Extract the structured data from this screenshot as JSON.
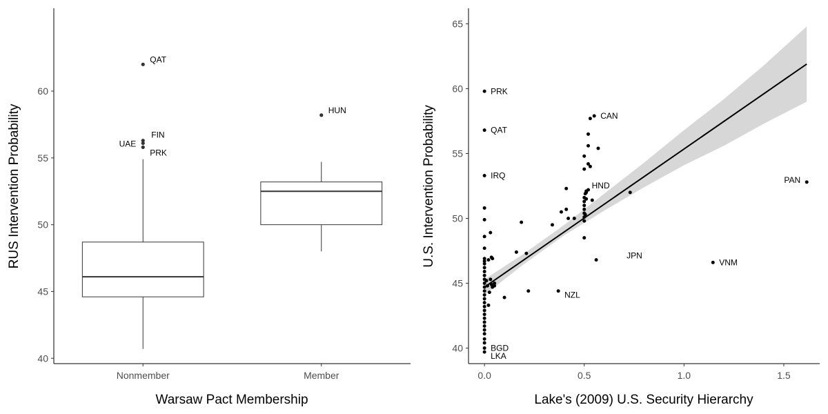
{
  "chart_data": [
    {
      "type": "box",
      "xlabel": "Warsaw Pact Membership",
      "ylabel": "RUS Intervention Probability",
      "ylim": [
        39.6,
        66.2
      ],
      "yticks": [
        40,
        45,
        50,
        55,
        60
      ],
      "categories": [
        "Nonmember",
        "Member"
      ],
      "boxes": [
        {
          "category": "Nonmember",
          "lower_whisker": 40.7,
          "q1": 44.6,
          "median": 46.1,
          "q3": 48.7,
          "upper_whisker": 54.9
        },
        {
          "category": "Member",
          "lower_whisker": 48.0,
          "q1": 50.0,
          "median": 52.5,
          "q3": 53.2,
          "upper_whisker": 54.7
        }
      ],
      "outliers": [
        {
          "category": "Nonmember",
          "y": 62.0,
          "label": "QAT",
          "label_side": "right"
        },
        {
          "category": "Nonmember",
          "y": 56.3,
          "label": "FIN",
          "label_side": "right-up"
        },
        {
          "category": "Nonmember",
          "y": 56.1,
          "label": "UAE",
          "label_side": "left"
        },
        {
          "category": "Nonmember",
          "y": 55.8,
          "label": "PRK",
          "label_side": "right-down"
        },
        {
          "category": "Member",
          "y": 58.2,
          "label": "HUN",
          "label_side": "right"
        }
      ]
    },
    {
      "type": "scatter",
      "xlabel": "Lake's (2009) U.S. Security Hierarchy",
      "ylabel": "U.S. Intervention Probability",
      "xlim": [
        -0.08,
        1.68
      ],
      "ylim": [
        38.8,
        66.2
      ],
      "xticks": [
        0.0,
        0.5,
        1.0,
        1.5
      ],
      "xtick_labels": [
        "0.0",
        "0.5",
        "1.0",
        "1.5"
      ],
      "yticks": [
        40,
        45,
        50,
        55,
        60,
        65
      ],
      "fit": {
        "x0": 0.0,
        "y0": 44.7,
        "x1": 1.615,
        "y1": 61.9
      },
      "band": {
        "x": [
          0.0,
          0.2,
          0.4,
          0.6,
          0.8,
          1.0,
          1.2,
          1.4,
          1.615
        ],
        "upper": [
          45.3,
          47.3,
          49.5,
          51.9,
          54.3,
          56.8,
          59.2,
          61.8,
          64.8
        ],
        "lower": [
          44.1,
          46.5,
          48.7,
          50.6,
          52.4,
          54.1,
          55.6,
          57.3,
          59.0
        ]
      },
      "labeled_points": [
        {
          "x": 0.0,
          "y": 59.8,
          "label": "PRK",
          "label_side": "right"
        },
        {
          "x": 0.0,
          "y": 56.8,
          "label": "QAT",
          "label_side": "right"
        },
        {
          "x": 0.0,
          "y": 53.3,
          "label": "IRQ",
          "label_side": "right"
        },
        {
          "x": 0.55,
          "y": 57.9,
          "label": "CAN",
          "label_side": "right"
        },
        {
          "x": 0.51,
          "y": 52.1,
          "label": "HND",
          "label_side": "right-up"
        },
        {
          "x": 1.615,
          "y": 52.8,
          "label": "PAN",
          "label_side": "left"
        },
        {
          "x": 0.56,
          "y": 46.8,
          "label": "JPN",
          "label_side": "right-far"
        },
        {
          "x": 1.145,
          "y": 46.6,
          "label": "VNM",
          "label_side": "right"
        },
        {
          "x": 0.37,
          "y": 44.4,
          "label": "NZL",
          "label_side": "right-down"
        },
        {
          "x": 0.0,
          "y": 40.0,
          "label": "BGD",
          "label_side": "right"
        },
        {
          "x": 0.0,
          "y": 39.7,
          "label": "LKA",
          "label_side": "right-down"
        }
      ],
      "points": [
        [
          0.0,
          50.8
        ],
        [
          0.0,
          49.9
        ],
        [
          0.0,
          48.6
        ],
        [
          0.0,
          47.7
        ],
        [
          0.0,
          46.9
        ],
        [
          0.0,
          46.7
        ],
        [
          0.0,
          46.5
        ],
        [
          0.0,
          46.2
        ],
        [
          0.0,
          45.9
        ],
        [
          0.0,
          45.6
        ],
        [
          0.0,
          45.3
        ],
        [
          0.0,
          45.0
        ],
        [
          0.0,
          44.7
        ],
        [
          0.0,
          44.4
        ],
        [
          0.0,
          44.1
        ],
        [
          0.0,
          43.8
        ],
        [
          0.0,
          43.5
        ],
        [
          0.0,
          43.2
        ],
        [
          0.0,
          42.9
        ],
        [
          0.0,
          42.6
        ],
        [
          0.0,
          42.3
        ],
        [
          0.0,
          42.0
        ],
        [
          0.0,
          41.7
        ],
        [
          0.0,
          41.4
        ],
        [
          0.0,
          41.1
        ],
        [
          0.0,
          40.7
        ],
        [
          0.0,
          40.4
        ],
        [
          0.01,
          45.2
        ],
        [
          0.015,
          44.8
        ],
        [
          0.02,
          43.3
        ],
        [
          0.025,
          44.3
        ],
        [
          0.02,
          46.8
        ],
        [
          0.03,
          48.9
        ],
        [
          0.035,
          47.0
        ],
        [
          0.04,
          46.9
        ],
        [
          0.03,
          45.3
        ],
        [
          0.035,
          44.9
        ],
        [
          0.04,
          44.7
        ],
        [
          0.05,
          45.0
        ],
        [
          0.05,
          44.8
        ],
        [
          0.1,
          43.9
        ],
        [
          0.16,
          47.4
        ],
        [
          0.185,
          49.7
        ],
        [
          0.21,
          47.3
        ],
        [
          0.22,
          44.4
        ],
        [
          0.34,
          49.5
        ],
        [
          0.385,
          50.5
        ],
        [
          0.41,
          52.3
        ],
        [
          0.41,
          50.7
        ],
        [
          0.42,
          50.0
        ],
        [
          0.45,
          50.0
        ],
        [
          0.5,
          48.5
        ],
        [
          0.5,
          49.8
        ],
        [
          0.5,
          50.1
        ],
        [
          0.5,
          50.4
        ],
        [
          0.5,
          50.7
        ],
        [
          0.5,
          51.0
        ],
        [
          0.5,
          51.3
        ],
        [
          0.5,
          51.6
        ],
        [
          0.505,
          51.9
        ],
        [
          0.51,
          52.0
        ],
        [
          0.51,
          51.5
        ],
        [
          0.505,
          50.3
        ],
        [
          0.52,
          52.2
        ],
        [
          0.5,
          53.8
        ],
        [
          0.52,
          54.2
        ],
        [
          0.5,
          54.8
        ],
        [
          0.52,
          55.6
        ],
        [
          0.52,
          56.5
        ],
        [
          0.53,
          57.7
        ],
        [
          0.53,
          54.0
        ],
        [
          0.54,
          51.4
        ],
        [
          0.57,
          55.4
        ],
        [
          0.73,
          52.0
        ]
      ]
    }
  ]
}
